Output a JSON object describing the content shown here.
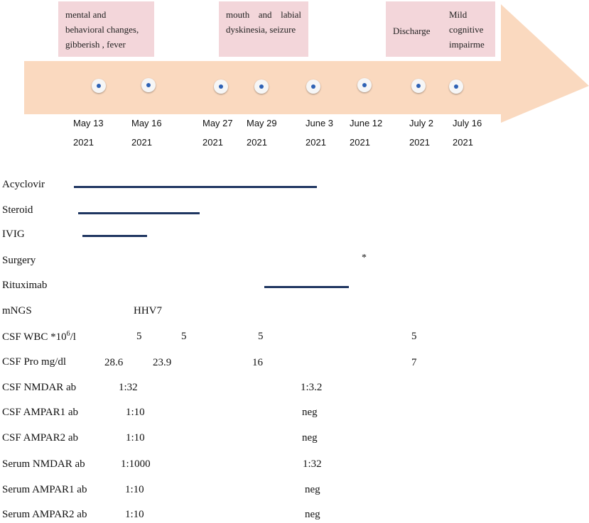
{
  "events": [
    {
      "id": "onset",
      "text": "mental and behavioral changes, gibberish , fever"
    },
    {
      "id": "dyskinesia",
      "text": "mouth and labial dyskinesia, seizure"
    },
    {
      "id": "discharge",
      "text": "Discharge"
    },
    {
      "id": "followup",
      "text": "Mild cognitive impairme"
    }
  ],
  "dates": [
    {
      "day": "May 13",
      "year": "2021"
    },
    {
      "day": "May 16",
      "year": "2021"
    },
    {
      "day": "May 27",
      "year": "2021"
    },
    {
      "day": "May 29",
      "year": "2021"
    },
    {
      "day": "June 3",
      "year": "2021"
    },
    {
      "day": "June 12",
      "year": "2021"
    },
    {
      "day": "July 2",
      "year": "2021"
    },
    {
      "day": "July 16",
      "year": "2021"
    }
  ],
  "treatments": {
    "acyclovir": "Acyclovir",
    "steroid": "Steroid",
    "ivig": "IVIG",
    "surgery": "Surgery",
    "surgery_marker": "*",
    "rituximab": "Rituximab"
  },
  "labs": {
    "mngs": {
      "label": "mNGS",
      "values": [
        "HHV7"
      ]
    },
    "csf_wbc": {
      "label_prefix": "CSF WBC *10",
      "label_sup": "6",
      "label_suffix": "/l",
      "values": [
        "5",
        "5",
        "5",
        "5"
      ]
    },
    "csf_pro": {
      "label": "CSF Pro mg/dl",
      "values": [
        "28.6",
        "23.9",
        "16",
        "7"
      ]
    },
    "csf_nmdar": {
      "label": "CSF NMDAR ab",
      "values": [
        "1:32",
        "1:3.2"
      ]
    },
    "csf_ampar1": {
      "label": "CSF AMPAR1 ab",
      "values": [
        "1:10",
        "neg"
      ]
    },
    "csf_ampar2": {
      "label": "CSF AMPAR2 ab",
      "values": [
        "1:10",
        "neg"
      ]
    },
    "serum_nmdar": {
      "label": "Serum NMDAR ab",
      "values": [
        "1:1000",
        "1:32"
      ]
    },
    "serum_ampar1": {
      "label": "Serum AMPAR1 ab",
      "values": [
        "1:10",
        "neg"
      ]
    },
    "serum_ampar2": {
      "label": "Serum AMPAR2 ab",
      "values": [
        "1:10",
        "neg"
      ]
    }
  },
  "colors": {
    "arrow": "#fad9bf",
    "event_box": "#f3d6da",
    "treatment_bar": "#1e3560",
    "dot_center": "#2e62b5"
  }
}
